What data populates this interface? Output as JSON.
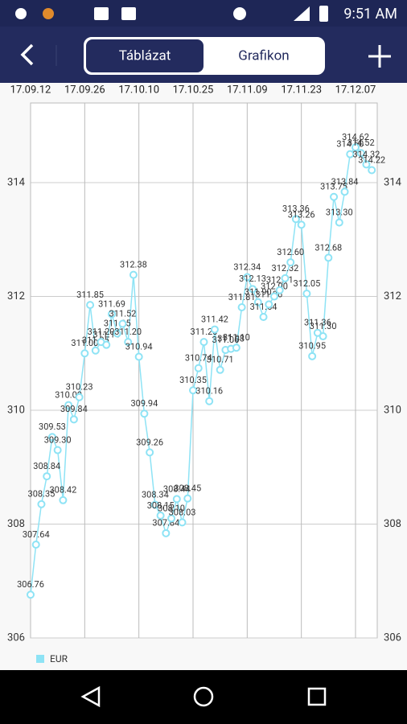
{
  "status_bar": {
    "time": "9:51 AM"
  },
  "tabs": [
    "Táblázat",
    "Grafikon"
  ],
  "chart_data": {
    "type": "line",
    "x": [
      "17.09.12",
      "17.09.13",
      "17.09.14",
      "17.09.15",
      "17.09.18",
      "17.09.19",
      "17.09.20",
      "17.09.21",
      "17.09.22",
      "17.09.25",
      "17.09.26",
      "17.09.27",
      "17.09.28",
      "17.09.29",
      "17.10.02",
      "17.10.03",
      "17.10.04",
      "17.10.05",
      "17.10.06",
      "17.10.09",
      "17.10.10",
      "17.10.11",
      "17.10.12",
      "17.10.13",
      "17.10.16",
      "17.10.17",
      "17.10.18",
      "17.10.19",
      "17.10.20",
      "17.10.24",
      "17.10.25",
      "17.10.26",
      "17.10.27",
      "17.10.30",
      "17.10.31",
      "17.11.02",
      "17.11.03",
      "17.11.06",
      "17.11.07",
      "17.11.08",
      "17.11.09",
      "17.11.10",
      "17.11.13",
      "17.11.14",
      "17.11.15",
      "17.11.16",
      "17.11.17",
      "17.11.20",
      "17.11.21",
      "17.11.22",
      "17.11.23",
      "17.11.24",
      "17.11.27",
      "17.11.28",
      "17.11.29",
      "17.11.30",
      "17.12.01",
      "17.12.04",
      "17.12.05",
      "17.12.06",
      "17.12.07",
      "17.12.08",
      "17.12.11",
      "17.12.12"
    ],
    "series": [
      {
        "name": "EUR",
        "color": "#8ee3f5",
        "values": [
          306.76,
          307.64,
          308.35,
          308.84,
          309.53,
          309.3,
          308.42,
          310.09,
          309.84,
          310.23,
          311.0,
          311.85,
          311.05,
          311.2,
          311.15,
          311.69,
          311.35,
          311.52,
          311.2,
          312.38,
          310.94,
          309.94,
          309.26,
          308.34,
          308.15,
          307.84,
          308.1,
          308.44,
          308.03,
          308.45,
          310.35,
          310.74,
          311.2,
          310.16,
          311.42,
          310.71,
          311.06,
          311.08,
          311.1,
          311.81,
          312.34,
          312.13,
          311.9,
          311.64,
          311.86,
          312.0,
          312.11,
          312.32,
          312.6,
          313.36,
          313.26,
          312.05,
          310.95,
          311.36,
          311.3,
          312.68,
          313.75,
          313.3,
          313.84,
          314.5,
          314.62,
          314.52,
          314.32,
          314.22
        ],
        "value_labels": [
          "306.76",
          "307.64",
          "308.35",
          "308.84",
          "309.53",
          "309.30",
          "308.42",
          "310.09",
          "309.84",
          "310.23",
          "311.00",
          "311.85",
          "311.05",
          "311.20",
          "311.15",
          "311.69",
          "311.35",
          "311.52",
          "311.20",
          "312.38",
          "310.94",
          "309.94",
          "309.26",
          "308.34",
          "308.15",
          "307.84",
          "308.10",
          "308.44",
          "308.03",
          "308.45",
          "310.35",
          "310.74",
          "311.20",
          "310.16",
          "311.42",
          "310.71",
          "311.06",
          "311.08",
          "311.10",
          "311.81",
          "312.34",
          "312.13",
          "311.90",
          "311.64",
          "311.86",
          "312.00",
          "312.11",
          "312.32",
          "312.60",
          "313.36",
          "313.26",
          "312.05",
          "310.95",
          "311.36",
          "311.30",
          "312.68",
          "313.75",
          "313.30",
          "313.84",
          "314.50",
          "314.62",
          "314.52",
          "314.32",
          "314.22"
        ]
      }
    ],
    "xticks": [
      "17.09.12",
      "17.09.26",
      "17.10.10",
      "17.10.25",
      "17.11.09",
      "17.11.23",
      "17.12.07"
    ],
    "ylim": [
      306,
      315.4
    ],
    "yticks": [
      306,
      308,
      310,
      312,
      314
    ],
    "grid": true,
    "legend": "bottom-left"
  }
}
